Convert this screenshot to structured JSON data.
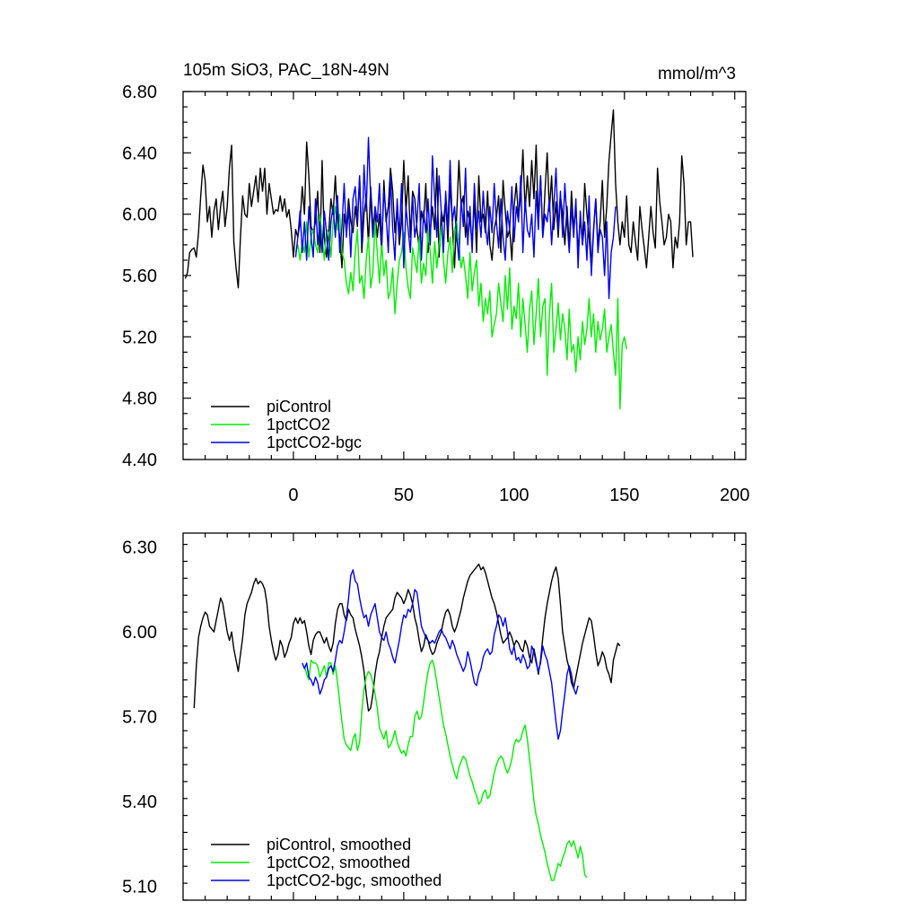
{
  "chart_data": [
    {
      "type": "line",
      "title": "105m SiO3, PAC_18N-49N",
      "units": "mmol/m^3",
      "xlim": [
        -50,
        205
      ],
      "ylim": [
        4.4,
        6.8
      ],
      "xticks": [
        0,
        50,
        100,
        150,
        200
      ],
      "xtick_labels": [
        "0",
        "50",
        "100",
        "150",
        "200"
      ],
      "yticks": [
        4.4,
        4.8,
        5.2,
        5.6,
        6.0,
        6.4,
        6.8
      ],
      "ytick_labels": [
        "4.40",
        "4.80",
        "5.20",
        "5.60",
        "6.00",
        "6.40",
        "6.80"
      ],
      "legend_position": "bottom-left",
      "series": [
        {
          "name": "piControl",
          "color": "#000000",
          "x_start": -49,
          "x_step": 1,
          "values": [
            5.58,
            5.62,
            5.75,
            5.77,
            5.78,
            5.72,
            5.88,
            6.12,
            6.32,
            6.22,
            5.95,
            6.05,
            5.85,
            6.02,
            6.1,
            5.9,
            6.05,
            6.15,
            5.92,
            6.05,
            6.3,
            6.45,
            5.82,
            5.65,
            5.52,
            5.85,
            6.12,
            6.0,
            5.98,
            6.2,
            6.05,
            6.15,
            6.25,
            6.08,
            6.3,
            6.15,
            6.3,
            6.0,
            6.2,
            6.1,
            6.0,
            6.03,
            6.02,
            6.12,
            6.02,
            6.1,
            5.98,
            6.03,
            5.9,
            5.72,
            5.9,
            5.85,
            5.95,
            6.18,
            6.0,
            6.47,
            6.25,
            5.92,
            5.88,
            5.95,
            6.15,
            5.75,
            6.35,
            5.85,
            5.72,
            5.88,
            6.1,
            6.0,
            6.25,
            5.95,
            5.85,
            5.65,
            6.0,
            5.9,
            6.1,
            5.95,
            5.88,
            6.05,
            5.92,
            6.25,
            5.75,
            6.0,
            6.12,
            5.8,
            6.18,
            5.92,
            6.0,
            5.85,
            6.0,
            5.75,
            6.22,
            5.95,
            6.05,
            6.3,
            6.15,
            5.88,
            6.05,
            5.8,
            5.95,
            6.35,
            6.02,
            6.25,
            5.85,
            6.15,
            6.1,
            5.9,
            5.78,
            6.02,
            5.95,
            6.2,
            5.75,
            5.88,
            6.05,
            5.9,
            6.3,
            5.72,
            6.02,
            5.95,
            6.1,
            5.82,
            6.2,
            5.95,
            5.65,
            6.0,
            6.35,
            6.05,
            6.12,
            5.85,
            6.02,
            5.95,
            5.8,
            6.1,
            5.75,
            6.25,
            5.95,
            6.0,
            5.88,
            6.15,
            5.8,
            5.7,
            5.9,
            5.98,
            6.12,
            5.75,
            6.22,
            6.02,
            5.85,
            5.9,
            5.7,
            6.05,
            6.2,
            5.98,
            6.12,
            6.42,
            6.02,
            6.25,
            6.05,
            6.35,
            6.1,
            6.45,
            5.95,
            6.25,
            5.85,
            6.15,
            6.4,
            6.02,
            6.25,
            5.9,
            6.08,
            5.85,
            6.12,
            6.0,
            5.8,
            6.05,
            5.78,
            6.15,
            5.9,
            6.05,
            5.75,
            5.98,
            5.8,
            6.2,
            6.0,
            5.85,
            5.65,
            5.9,
            6.1,
            5.8,
            5.95,
            6.22,
            5.85,
            6.05,
            6.35,
            6.52,
            6.68,
            6.2,
            5.95,
            5.8,
            5.95,
            5.85,
            6.12,
            5.8,
            5.75,
            5.95,
            5.82,
            5.7,
            6.05,
            5.9,
            5.78,
            5.65,
            5.85,
            6.05,
            5.88,
            5.78,
            6.3,
            6.08,
            5.95,
            5.8,
            5.85,
            6.0,
            5.95,
            5.65,
            5.85,
            5.78,
            5.95,
            6.38,
            6.2,
            5.8,
            5.95,
            5.95,
            5.72
          ]
        },
        {
          "name": "1pctCO2",
          "color": "#00ee00",
          "x_start": 1,
          "x_step": 1,
          "values": [
            5.75,
            5.8,
            5.7,
            5.82,
            5.75,
            5.95,
            5.72,
            5.85,
            5.9,
            5.8,
            5.75,
            6.0,
            5.85,
            5.7,
            5.9,
            5.88,
            5.72,
            5.95,
            6.05,
            5.9,
            6.0,
            5.75,
            5.7,
            5.55,
            5.48,
            5.62,
            5.5,
            5.75,
            5.9,
            5.55,
            5.6,
            5.45,
            5.7,
            5.85,
            5.52,
            5.62,
            5.95,
            5.75,
            5.55,
            5.82,
            5.6,
            5.7,
            5.45,
            5.5,
            5.65,
            5.35,
            5.55,
            5.7,
            5.75,
            5.88,
            5.65,
            5.52,
            5.45,
            5.78,
            5.7,
            5.62,
            5.85,
            5.55,
            5.68,
            5.6,
            5.9,
            5.75,
            5.55,
            5.82,
            5.65,
            5.8,
            5.92,
            5.7,
            5.55,
            5.75,
            5.85,
            5.62,
            5.9,
            5.95,
            5.8,
            5.65,
            5.72,
            5.6,
            5.45,
            5.75,
            5.5,
            5.62,
            5.7,
            5.4,
            5.55,
            5.3,
            5.45,
            5.35,
            5.5,
            5.2,
            5.28,
            5.35,
            5.55,
            5.42,
            5.3,
            5.6,
            5.38,
            5.65,
            5.25,
            5.4,
            5.32,
            5.55,
            5.2,
            5.45,
            5.28,
            5.1,
            5.38,
            5.5,
            5.15,
            5.35,
            5.58,
            5.2,
            5.4,
            5.45,
            4.95,
            5.35,
            5.55,
            5.1,
            5.25,
            5.42,
            5.18,
            5.35,
            5.25,
            5.05,
            5.38,
            5.1,
            5.15,
            4.97,
            5.2,
            5.05,
            5.3,
            5.15,
            5.25,
            5.45,
            5.2,
            5.35,
            5.1,
            5.3,
            5.18,
            5.25,
            5.38,
            5.1,
            5.2,
            5.28,
            5.1,
            4.95,
            5.45,
            4.73,
            5.15,
            5.2,
            5.12
          ]
        },
        {
          "name": "1pctCO2-bgc",
          "color": "#0000ee",
          "x_start": 1,
          "x_step": 1,
          "values": [
            5.72,
            5.85,
            6.02,
            5.75,
            5.95,
            5.7,
            6.05,
            5.85,
            5.72,
            6.1,
            5.8,
            5.95,
            5.75,
            6.02,
            5.88,
            5.7,
            5.95,
            6.05,
            5.85,
            6.12,
            5.75,
            5.92,
            6.2,
            5.85,
            6.05,
            5.72,
            6.1,
            6.18,
            5.95,
            6.25,
            5.8,
            6.32,
            6.02,
            6.5,
            6.1,
            5.85,
            6.05,
            5.95,
            6.2,
            5.8,
            6.15,
            6.0,
            5.75,
            6.25,
            5.9,
            5.7,
            6.1,
            5.85,
            6.2,
            5.65,
            6.05,
            5.9,
            5.75,
            6.12,
            5.85,
            5.95,
            6.2,
            5.7,
            6.02,
            5.88,
            6.1,
            5.8,
            6.38,
            6.1,
            5.85,
            6.25,
            6.02,
            5.75,
            6.15,
            5.9,
            6.35,
            5.95,
            6.05,
            5.85,
            5.7,
            6.1,
            5.92,
            6.3,
            5.8,
            6.05,
            5.75,
            6.2,
            5.9,
            6.02,
            5.85,
            6.15,
            5.92,
            5.8,
            6.05,
            5.88,
            6.2,
            5.95,
            5.78,
            6.1,
            5.85,
            5.7,
            6.02,
            5.9,
            6.18,
            5.82,
            6.05,
            5.95,
            6.25,
            5.75,
            6.1,
            5.9,
            5.85,
            6.0,
            5.72,
            6.15,
            5.9,
            6.25,
            5.85,
            6.0,
            5.95,
            6.1,
            5.8,
            6.05,
            6.3,
            5.9,
            6.15,
            5.85,
            6.2,
            5.95,
            5.75,
            6.05,
            5.85,
            6.1,
            5.65,
            6.02,
            5.8,
            5.95,
            5.7,
            6.12,
            5.6,
            5.88,
            6.1,
            5.75,
            5.9,
            5.85,
            5.6,
            5.95,
            5.45,
            5.75,
            5.85,
            6.05
          ]
        }
      ]
    },
    {
      "type": "line",
      "title": "",
      "units": "",
      "xlim": [
        -50,
        205
      ],
      "ylim": [
        5.05,
        6.35
      ],
      "xticks": [
        0,
        50,
        100,
        150,
        200
      ],
      "yticks": [
        5.1,
        5.4,
        5.7,
        6.0,
        6.3
      ],
      "ytick_labels": [
        "5.10",
        "5.40",
        "5.70",
        "6.00",
        "6.30"
      ],
      "legend_position": "bottom-left",
      "series": [
        {
          "name": "piControl, smoothed",
          "color": "#000000",
          "x_start": -45,
          "x_step": 1,
          "values": [
            5.73,
            5.88,
            5.98,
            6.02,
            6.05,
            6.07,
            6.06,
            6.02,
            6.01,
            6.0,
            6.04,
            6.08,
            6.12,
            6.1,
            6.05,
            6.0,
            5.97,
            6.0,
            5.94,
            5.9,
            5.86,
            5.92,
            5.98,
            6.06,
            6.1,
            6.12,
            6.14,
            6.17,
            6.19,
            6.17,
            6.18,
            6.17,
            6.15,
            6.1,
            6.02,
            5.97,
            5.93,
            5.9,
            5.92,
            5.97,
            5.95,
            5.91,
            5.93,
            5.96,
            5.98,
            6.03,
            6.05,
            6.03,
            6.05,
            6.03,
            6.04,
            6.0,
            5.95,
            5.92,
            5.97,
            5.99,
            6.0,
            6.0,
            5.98,
            5.96,
            5.98,
            5.95,
            5.93,
            5.96,
            6.03,
            6.08,
            6.1,
            6.1,
            6.06,
            6.04,
            6.08,
            6.06,
            6.05,
            6.01,
            5.98,
            5.95,
            5.91,
            5.86,
            5.78,
            5.72,
            5.73,
            5.78,
            5.85,
            5.9,
            5.93,
            5.98,
            6.02,
            6.05,
            6.06,
            6.07,
            6.08,
            6.12,
            6.14,
            6.13,
            6.12,
            6.1,
            6.12,
            6.15,
            6.13,
            6.1,
            6.05,
            6.02,
            5.97,
            5.93,
            5.95,
            5.99,
            5.97,
            5.94,
            5.92,
            5.93,
            5.96,
            5.98,
            6.0,
            6.04,
            6.07,
            6.08,
            6.06,
            6.02,
            6.0,
            6.02,
            6.05,
            6.08,
            6.12,
            6.15,
            6.18,
            6.2,
            6.21,
            6.22,
            6.23,
            6.24,
            6.22,
            6.23,
            6.21,
            6.18,
            6.15,
            6.12,
            6.1,
            6.07,
            6.03,
            5.99,
            5.96,
            5.97,
            5.98,
            6.0,
            5.98,
            5.95,
            5.97,
            5.96,
            5.94,
            5.93,
            5.97,
            5.95,
            5.91,
            5.89,
            5.94,
            5.9,
            5.85,
            5.9,
            5.98,
            6.05,
            6.1,
            6.14,
            6.18,
            6.21,
            6.23,
            6.19,
            6.1,
            6.0,
            5.95,
            5.9,
            5.87,
            5.82,
            5.8,
            5.84,
            5.88,
            5.92,
            5.96,
            5.99,
            6.02,
            6.05,
            6.04,
            5.99,
            5.93,
            5.88,
            5.9,
            5.93,
            5.91,
            5.87,
            5.85,
            5.82,
            5.9,
            5.93,
            5.96,
            5.95
          ]
        },
        {
          "name": "1pctCO2, smoothed",
          "color": "#00ee00",
          "x_start": 5,
          "x_step": 1,
          "values": [
            5.88,
            5.85,
            5.83,
            5.9,
            5.89,
            5.89,
            5.88,
            5.84,
            5.86,
            5.88,
            5.84,
            5.89,
            5.89,
            5.85,
            5.88,
            5.82,
            5.75,
            5.68,
            5.62,
            5.6,
            5.59,
            5.58,
            5.62,
            5.64,
            5.58,
            5.61,
            5.72,
            5.8,
            5.84,
            5.86,
            5.85,
            5.82,
            5.78,
            5.73,
            5.66,
            5.64,
            5.62,
            5.65,
            5.59,
            5.6,
            5.62,
            5.65,
            5.61,
            5.59,
            5.57,
            5.58,
            5.56,
            5.6,
            5.63,
            5.63,
            5.7,
            5.72,
            5.69,
            5.7,
            5.75,
            5.81,
            5.86,
            5.89,
            5.9,
            5.87,
            5.82,
            5.77,
            5.72,
            5.67,
            5.64,
            5.6,
            5.56,
            5.53,
            5.5,
            5.48,
            5.52,
            5.54,
            5.56,
            5.55,
            5.52,
            5.49,
            5.47,
            5.44,
            5.42,
            5.39,
            5.4,
            5.43,
            5.44,
            5.41,
            5.42,
            5.46,
            5.5,
            5.53,
            5.55,
            5.56,
            5.55,
            5.52,
            5.5,
            5.52,
            5.55,
            5.6,
            5.62,
            5.61,
            5.62,
            5.65,
            5.67,
            5.62,
            5.55,
            5.48,
            5.4,
            5.35,
            5.32,
            5.28,
            5.25,
            5.22,
            5.18,
            5.15,
            5.12,
            5.12,
            5.15,
            5.18,
            5.17,
            5.2,
            5.22,
            5.25,
            5.26,
            5.24,
            5.26,
            5.23,
            5.2,
            5.24,
            5.21,
            5.14,
            5.13
          ]
        },
        {
          "name": "1pctCO2-bgc, smoothed",
          "color": "#0000ee",
          "x_start": 4,
          "x_step": 1,
          "values": [
            5.89,
            5.87,
            5.89,
            5.84,
            5.83,
            5.81,
            5.84,
            5.82,
            5.78,
            5.8,
            5.83,
            5.84,
            5.87,
            5.88,
            5.86,
            5.9,
            5.95,
            5.97,
            5.96,
            6.0,
            6.05,
            6.12,
            6.2,
            6.22,
            6.18,
            6.17,
            6.12,
            6.08,
            6.05,
            6.06,
            6.02,
            6.06,
            6.08,
            6.1,
            6.05,
            6.0,
            5.98,
            5.97,
            6.0,
            5.96,
            5.94,
            5.91,
            5.89,
            5.93,
            5.97,
            6.02,
            6.06,
            6.05,
            6.08,
            6.07,
            6.1,
            6.15,
            6.14,
            6.08,
            6.02,
            6.0,
            5.98,
            5.97,
            5.96,
            5.97,
            5.96,
            5.98,
            6.0,
            6.01,
            5.99,
            5.98,
            5.96,
            5.94,
            5.97,
            5.95,
            5.92,
            5.9,
            5.88,
            5.86,
            5.88,
            5.93,
            5.9,
            5.86,
            5.82,
            5.81,
            5.85,
            5.87,
            5.91,
            5.93,
            5.94,
            5.92,
            5.93,
            5.99,
            6.02,
            6.06,
            6.05,
            6.02,
            6.05,
            6.0,
            5.94,
            5.92,
            5.95,
            5.9,
            5.91,
            5.89,
            5.92,
            5.9,
            5.87,
            5.88,
            5.95,
            5.93,
            5.89,
            5.86,
            5.89,
            5.95,
            5.92,
            5.9,
            5.86,
            5.82,
            5.75,
            5.68,
            5.62,
            5.65,
            5.72,
            5.78,
            5.85,
            5.88,
            5.85,
            5.8,
            5.78,
            5.81
          ]
        }
      ]
    }
  ]
}
